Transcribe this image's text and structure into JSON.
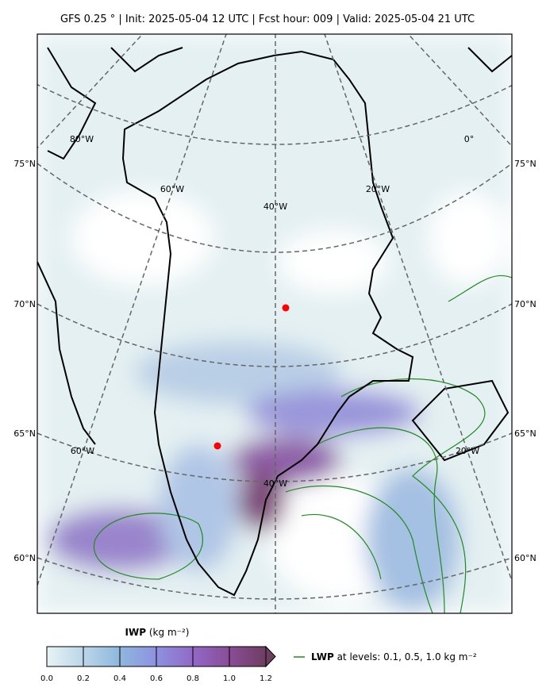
{
  "header": {
    "title": "GFS 0.25 °  |  Init: 2025-05-04 12 UTC  |  Fcst hour: 009  |  Valid: 2025-05-04 21 UTC"
  },
  "map": {
    "lat_labels_left": [
      "75°N",
      "70°N",
      "65°N",
      "60°N"
    ],
    "lat_labels_right": [
      "75°N",
      "70°N",
      "65°N",
      "60°N"
    ],
    "lon_labels": [
      "80°W",
      "0°",
      "60°W",
      "20°W",
      "40°W",
      "60°W",
      "20°W",
      "40°W"
    ]
  },
  "colorbar": {
    "label": "IWP",
    "units": "(kg m⁻²)",
    "lim": [
      0,
      1.2
    ],
    "ticks": [
      {
        "value": 0,
        "label": "0.0"
      },
      {
        "value": 0.2,
        "label": "0.2"
      },
      {
        "value": 0.4,
        "label": "0.4"
      },
      {
        "value": 0.6,
        "label": "0.6"
      },
      {
        "value": 0.8,
        "label": "0.8"
      },
      {
        "value": 1,
        "label": "1.0"
      },
      {
        "value": 1.2,
        "label": "1.2"
      }
    ]
  },
  "legend": {
    "label": "LWP",
    "text": "at levels: 0.1, 0.5, 1.0  kg m⁻²"
  }
}
